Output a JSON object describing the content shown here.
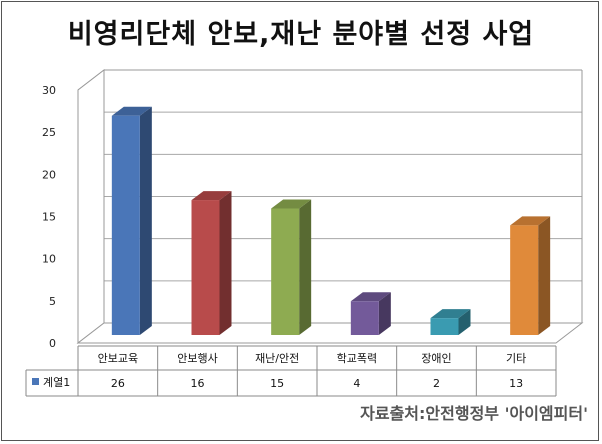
{
  "chart_data": {
    "type": "bar",
    "title": "비영리단체 안보,재난 분야별 선정 사업",
    "categories": [
      "안보교육",
      "안보행사",
      "재난/안전",
      "학교폭력",
      "장애인",
      "기타"
    ],
    "series": [
      {
        "name": "계열1",
        "values": [
          26,
          16,
          15,
          4,
          2,
          13
        ]
      }
    ],
    "colors": [
      "#4a76b8",
      "#b84b4b",
      "#8eab51",
      "#735a9a",
      "#3a9bb1",
      "#e08a3a"
    ],
    "ylim": [
      0,
      30
    ],
    "yticks": [
      0,
      5,
      10,
      15,
      20,
      25,
      30
    ],
    "grid": true,
    "legend": "data-table-left",
    "source": "자료출처:안전행정부 '아이엠피터'"
  }
}
